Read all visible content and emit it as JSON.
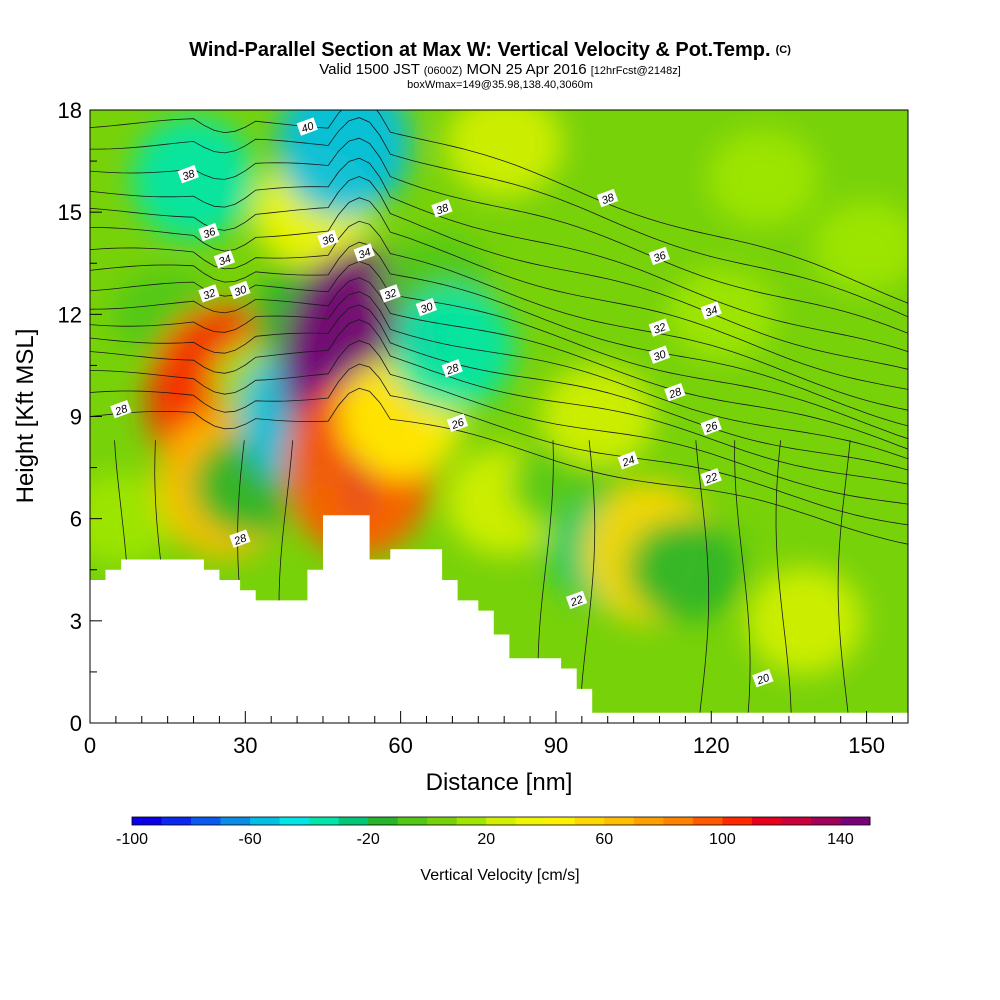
{
  "title": "Wind-Parallel Section at Max W: Vertical Velocity & Pot.Temp.",
  "title_mark": "(C)",
  "subtitle_parts": [
    "Valid 1500 JST ",
    "(0600Z)",
    " MON 25 Apr 2016 ",
    "[12hrFcst@2148z]"
  ],
  "subtitle2": "boxWmax=149@35.98,138.40,3060m",
  "chart_data": {
    "type": "heatmap",
    "xlabel": "Distance [nm]",
    "ylabel": "Height [Kft MSL]",
    "xlim": [
      0,
      158
    ],
    "ylim": [
      0,
      18
    ],
    "x_ticks": [
      0,
      30,
      60,
      90,
      120,
      150
    ],
    "y_ticks": [
      0,
      3,
      6,
      9,
      12,
      15,
      18
    ],
    "colorbar": {
      "label": "Vertical Velocity [cm/s]",
      "range": [
        -100,
        150
      ],
      "step": 10,
      "tick_values": [
        -100,
        -60,
        -20,
        20,
        60,
        100,
        140
      ],
      "colors": [
        "#0a00e6",
        "#0a28f0",
        "#0a5af0",
        "#0a8ce6",
        "#00bee6",
        "#00e6e6",
        "#00e6aa",
        "#00c878",
        "#28b428",
        "#50c814",
        "#78d20a",
        "#a0e600",
        "#d2f000",
        "#f0f500",
        "#fff000",
        "#ffd700",
        "#ffbe00",
        "#ffa000",
        "#ff8200",
        "#ff5a00",
        "#ff2800",
        "#e6001e",
        "#c8003c",
        "#a0005a",
        "#780078"
      ]
    },
    "vertical_velocity_cells": [
      {
        "x": 6,
        "y": 6,
        "w": 10
      },
      {
        "x": 15,
        "y": 12,
        "w": -10
      },
      {
        "x": 20,
        "y": 16,
        "w": -40
      },
      {
        "x": 26,
        "y": 9.5,
        "w": 100
      },
      {
        "x": 26,
        "y": 7,
        "w": 60
      },
      {
        "x": 31,
        "y": 7,
        "w": -20
      },
      {
        "x": 34,
        "y": 10,
        "w": 10
      },
      {
        "x": 42,
        "y": 9,
        "w": -60
      },
      {
        "x": 42,
        "y": 12,
        "w": -20
      },
      {
        "x": 43,
        "y": 15,
        "w": 30
      },
      {
        "x": 49,
        "y": 17,
        "w": -60
      },
      {
        "x": 52,
        "y": 10.5,
        "w": 145
      },
      {
        "x": 52,
        "y": 7.5,
        "w": 90
      },
      {
        "x": 60,
        "y": 9,
        "w": 40
      },
      {
        "x": 67,
        "y": 13,
        "w": -10
      },
      {
        "x": 70,
        "y": 11,
        "w": -40
      },
      {
        "x": 80,
        "y": 17,
        "w": 25
      },
      {
        "x": 80,
        "y": 6.5,
        "w": 25
      },
      {
        "x": 92,
        "y": 7,
        "w": -10
      },
      {
        "x": 98,
        "y": 9,
        "w": 20
      },
      {
        "x": 100,
        "y": 5,
        "w": -25
      },
      {
        "x": 108,
        "y": 5,
        "w": 55
      },
      {
        "x": 115,
        "y": 4.5,
        "w": -20
      },
      {
        "x": 122,
        "y": 12,
        "w": 10
      },
      {
        "x": 138,
        "y": 3,
        "w": 25
      },
      {
        "x": 130,
        "y": 16,
        "w": 15
      },
      {
        "x": 150,
        "y": 14,
        "w": 10
      }
    ],
    "terrain": [
      [
        0,
        4.2
      ],
      [
        3,
        4.2
      ],
      [
        3,
        4.5
      ],
      [
        6,
        4.5
      ],
      [
        6,
        4.8
      ],
      [
        22,
        4.8
      ],
      [
        22,
        4.5
      ],
      [
        25,
        4.5
      ],
      [
        25,
        4.2
      ],
      [
        29,
        4.2
      ],
      [
        29,
        3.9
      ],
      [
        32,
        3.9
      ],
      [
        32,
        3.6
      ],
      [
        42,
        3.6
      ],
      [
        42,
        4.5
      ],
      [
        45,
        4.5
      ],
      [
        45,
        6.1
      ],
      [
        54,
        6.1
      ],
      [
        54,
        4.8
      ],
      [
        58,
        4.8
      ],
      [
        58,
        5.1
      ],
      [
        68,
        5.1
      ],
      [
        68,
        4.2
      ],
      [
        71,
        4.2
      ],
      [
        71,
        3.6
      ],
      [
        75,
        3.6
      ],
      [
        75,
        3.3
      ],
      [
        78,
        3.3
      ],
      [
        78,
        2.6
      ],
      [
        81,
        2.6
      ],
      [
        81,
        1.9
      ],
      [
        91,
        1.9
      ],
      [
        91,
        1.6
      ],
      [
        94,
        1.6
      ],
      [
        94,
        1.0
      ],
      [
        97,
        1.0
      ],
      [
        97,
        0.3
      ],
      [
        158,
        0.3
      ]
    ],
    "theta_contour_labels": [
      {
        "text": "40",
        "x": 42,
        "y": 17.5
      },
      {
        "text": "38",
        "x": 19,
        "y": 16.1
      },
      {
        "text": "38",
        "x": 68,
        "y": 15.1
      },
      {
        "text": "38",
        "x": 100,
        "y": 15.4
      },
      {
        "text": "36",
        "x": 23,
        "y": 14.4
      },
      {
        "text": "36",
        "x": 46,
        "y": 14.2
      },
      {
        "text": "36",
        "x": 110,
        "y": 13.7
      },
      {
        "text": "34",
        "x": 26,
        "y": 13.6
      },
      {
        "text": "34",
        "x": 53,
        "y": 13.8
      },
      {
        "text": "34",
        "x": 120,
        "y": 12.1
      },
      {
        "text": "32",
        "x": 23,
        "y": 12.6
      },
      {
        "text": "32",
        "x": 58,
        "y": 12.6
      },
      {
        "text": "32",
        "x": 110,
        "y": 11.6
      },
      {
        "text": "30",
        "x": 29,
        "y": 12.7
      },
      {
        "text": "30",
        "x": 65,
        "y": 12.2
      },
      {
        "text": "30",
        "x": 110,
        "y": 10.8
      },
      {
        "text": "28",
        "x": 6,
        "y": 9.2
      },
      {
        "text": "28",
        "x": 70,
        "y": 10.4
      },
      {
        "text": "28",
        "x": 113,
        "y": 9.7
      },
      {
        "text": "28",
        "x": 29,
        "y": 5.4
      },
      {
        "text": "26",
        "x": 71,
        "y": 8.8
      },
      {
        "text": "26",
        "x": 120,
        "y": 8.7
      },
      {
        "text": "24",
        "x": 104,
        "y": 7.7
      },
      {
        "text": "22",
        "x": 94,
        "y": 3.6
      },
      {
        "text": "22",
        "x": 120,
        "y": 7.2
      },
      {
        "text": "20",
        "x": 130,
        "y": 1.3
      }
    ]
  }
}
